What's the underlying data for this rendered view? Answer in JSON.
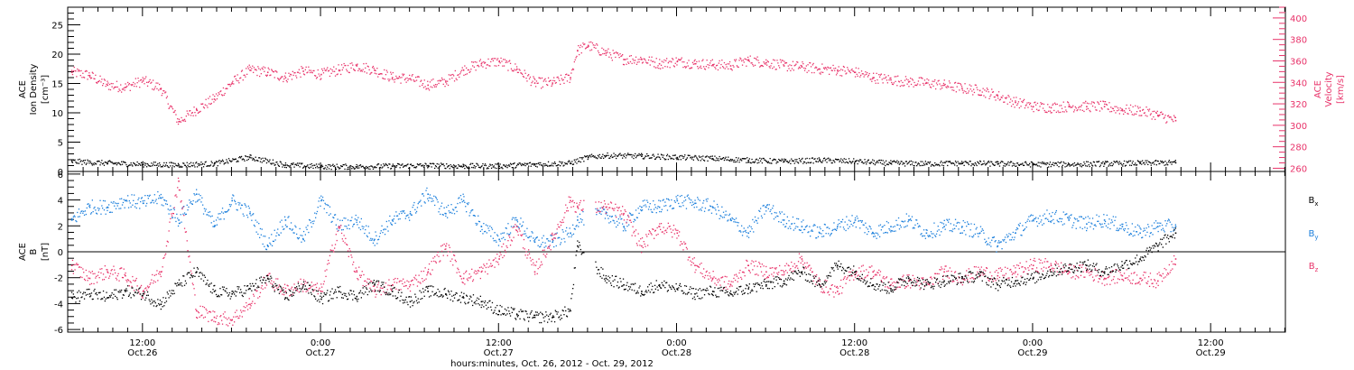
{
  "colors": {
    "density": "#000000",
    "velocity": "#e8336a",
    "bx": "#000000",
    "by": "#1b7fdc",
    "bz": "#e8336a"
  },
  "x_axis": {
    "title": "hours:minutes, Oct. 26, 2012 - Oct. 29, 2012",
    "ticks": [
      {
        "t": 0.5,
        "time": "12:00",
        "date": "Oct.26"
      },
      {
        "t": 1.0,
        "time": "0:00",
        "date": "Oct.27"
      },
      {
        "t": 1.5,
        "time": "12:00",
        "date": "Oct.27"
      },
      {
        "t": 2.0,
        "time": "0:00",
        "date": "Oct.28"
      },
      {
        "t": 2.5,
        "time": "12:00",
        "date": "Oct.28"
      },
      {
        "t": 3.0,
        "time": "0:00",
        "date": "Oct.29"
      },
      {
        "t": 3.5,
        "time": "12:00",
        "date": "Oct.29"
      }
    ]
  },
  "panel1": {
    "left_label": [
      "ACE",
      "Ion Density",
      "[cm⁻³]"
    ],
    "right_label": [
      "ACE",
      "Velocity",
      "[km/s]"
    ],
    "left_ticks": [
      "0",
      "5",
      "10",
      "15",
      "20",
      "25"
    ],
    "right_ticks": [
      "260",
      "280",
      "300",
      "320",
      "340",
      "360",
      "380",
      "400"
    ]
  },
  "panel2": {
    "left_label": [
      "ACE",
      "B",
      "[nT]"
    ],
    "left_ticks": [
      "-6",
      "-4",
      "-2",
      "0",
      "2",
      "4",
      "6"
    ],
    "legend": [
      "Bx",
      "By",
      "Bz"
    ]
  },
  "chart_data": [
    {
      "type": "scatter",
      "title": "",
      "xlabel": "hours:minutes, Oct. 26, 2012 - Oct. 29, 2012",
      "x_units": "days since Oct. 26, 2012 00:00",
      "xlim": [
        0.29,
        3.71
      ],
      "y_left": {
        "label": "ACE Ion Density [cm^-3]",
        "ylim": [
          0,
          28
        ]
      },
      "y_right": {
        "label": "ACE Velocity [km/s]",
        "ylim": [
          257,
          410
        ]
      },
      "series": [
        {
          "name": "Ion Density",
          "axis": "left",
          "color": "#000000",
          "x": [
            0.3,
            0.4,
            0.5,
            0.6,
            0.7,
            0.8,
            0.9,
            1.0,
            1.1,
            1.2,
            1.3,
            1.4,
            1.5,
            1.6,
            1.7,
            1.75,
            1.8,
            1.9,
            2.0,
            2.1,
            2.2,
            2.3,
            2.4,
            2.5,
            2.6,
            2.7,
            2.8,
            2.9,
            3.0,
            3.1,
            3.2,
            3.3,
            3.4
          ],
          "y": [
            1.8,
            1.5,
            1.3,
            1.2,
            1.4,
            2.5,
            1.2,
            0.9,
            0.9,
            1.0,
            1.1,
            1.0,
            1.0,
            1.3,
            1.5,
            2.5,
            2.8,
            2.7,
            2.5,
            2.3,
            2.0,
            1.8,
            2.0,
            1.8,
            1.5,
            1.4,
            1.5,
            1.4,
            1.3,
            1.3,
            1.4,
            1.5,
            1.6
          ]
        },
        {
          "name": "Velocity",
          "axis": "right",
          "color": "#e8336a",
          "x": [
            0.3,
            0.35,
            0.4,
            0.45,
            0.5,
            0.55,
            0.6,
            0.65,
            0.7,
            0.75,
            0.8,
            0.85,
            0.9,
            0.95,
            1.0,
            1.05,
            1.1,
            1.15,
            1.2,
            1.25,
            1.3,
            1.35,
            1.4,
            1.45,
            1.5,
            1.55,
            1.6,
            1.65,
            1.7,
            1.72,
            1.75,
            1.8,
            1.85,
            1.9,
            1.95,
            2.0,
            2.05,
            2.1,
            2.15,
            2.2,
            2.25,
            2.3,
            2.35,
            2.4,
            2.45,
            2.5,
            2.55,
            2.6,
            2.65,
            2.7,
            2.75,
            2.8,
            2.85,
            2.9,
            2.95,
            3.0,
            3.05,
            3.1,
            3.15,
            3.2,
            3.25,
            3.3,
            3.35,
            3.4
          ],
          "y": [
            350,
            347,
            338,
            336,
            342,
            335,
            304,
            315,
            325,
            340,
            352,
            350,
            345,
            351,
            348,
            352,
            356,
            352,
            345,
            344,
            338,
            341,
            352,
            358,
            360,
            353,
            340,
            340,
            345,
            370,
            375,
            368,
            362,
            362,
            358,
            360,
            358,
            357,
            356,
            361,
            359,
            356,
            355,
            353,
            352,
            350,
            345,
            343,
            341,
            340,
            338,
            335,
            333,
            328,
            322,
            318,
            317,
            318,
            318,
            318,
            315,
            314,
            310,
            305
          ]
        }
      ]
    },
    {
      "type": "scatter",
      "title": "",
      "xlabel": "hours:minutes, Oct. 26, 2012 - Oct. 29, 2012",
      "x_units": "days since Oct. 26, 2012 00:00",
      "xlim": [
        0.29,
        3.71
      ],
      "ylabel": "ACE B [nT]",
      "ylim": [
        -6.2,
        6.2
      ],
      "legend": {
        "entries": [
          "Bx",
          "By",
          "Bz"
        ],
        "placement": "right"
      },
      "series": [
        {
          "name": "Bx",
          "color": "#000000",
          "x": [
            0.3,
            0.35,
            0.4,
            0.45,
            0.5,
            0.55,
            0.6,
            0.65,
            0.7,
            0.75,
            0.8,
            0.85,
            0.9,
            0.95,
            1.0,
            1.05,
            1.1,
            1.15,
            1.2,
            1.25,
            1.3,
            1.35,
            1.4,
            1.45,
            1.5,
            1.55,
            1.6,
            1.65,
            1.7,
            1.72,
            1.8,
            1.85,
            1.9,
            1.95,
            2.0,
            2.05,
            2.1,
            2.15,
            2.2,
            2.25,
            2.3,
            2.35,
            2.4,
            2.45,
            2.5,
            2.55,
            2.6,
            2.65,
            2.7,
            2.75,
            2.8,
            2.85,
            2.9,
            2.95,
            3.0,
            3.05,
            3.1,
            3.15,
            3.2,
            3.25,
            3.3,
            3.35,
            3.4
          ],
          "y": [
            -3.5,
            -3.2,
            -3.5,
            -3.0,
            -3.2,
            -4.0,
            -2.5,
            -1.5,
            -3.0,
            -3.2,
            -2.8,
            -2.0,
            -3.5,
            -2.5,
            -3.6,
            -3.0,
            -3.4,
            -2.5,
            -3.0,
            -3.8,
            -3.0,
            -3.2,
            -3.5,
            -3.8,
            -4.5,
            -4.8,
            -5.0,
            -5.0,
            -4.5,
            0.5,
            -2.0,
            -2.5,
            -3.0,
            -2.5,
            -2.8,
            -3.2,
            -3.0,
            -3.2,
            -2.8,
            -2.5,
            -2.2,
            -1.5,
            -2.5,
            -1.0,
            -1.5,
            -2.5,
            -2.8,
            -2.0,
            -2.5,
            -2.2,
            -2.0,
            -1.8,
            -2.5,
            -2.2,
            -2.0,
            -1.5,
            -1.2,
            -1.0,
            -1.5,
            -1.0,
            -0.5,
            0.5,
            1.5
          ]
        },
        {
          "name": "By",
          "color": "#1b7fdc",
          "x": [
            0.3,
            0.35,
            0.4,
            0.45,
            0.5,
            0.55,
            0.6,
            0.65,
            0.7,
            0.75,
            0.8,
            0.85,
            0.9,
            0.95,
            1.0,
            1.05,
            1.1,
            1.15,
            1.2,
            1.25,
            1.3,
            1.35,
            1.4,
            1.45,
            1.5,
            1.55,
            1.6,
            1.65,
            1.7,
            1.72,
            1.8,
            1.85,
            1.9,
            1.95,
            2.0,
            2.05,
            2.1,
            2.15,
            2.2,
            2.25,
            2.3,
            2.35,
            2.4,
            2.45,
            2.5,
            2.55,
            2.6,
            2.65,
            2.7,
            2.75,
            2.8,
            2.85,
            2.9,
            2.95,
            3.0,
            3.05,
            3.1,
            3.15,
            3.2,
            3.25,
            3.3,
            3.35,
            3.4
          ],
          "y": [
            2.5,
            3.5,
            3.5,
            4.0,
            3.8,
            4.2,
            2.5,
            4.5,
            2.0,
            4.0,
            3.0,
            0.5,
            2.5,
            1.0,
            4.0,
            2.0,
            2.5,
            1.0,
            2.5,
            3.0,
            4.5,
            3.0,
            4.0,
            2.0,
            1.0,
            2.5,
            0.8,
            0.8,
            1.5,
            2.5,
            3.0,
            2.0,
            3.5,
            3.5,
            4.0,
            3.8,
            3.5,
            2.5,
            1.5,
            3.5,
            2.5,
            2.0,
            1.5,
            2.0,
            2.5,
            1.5,
            2.0,
            2.5,
            1.5,
            2.0,
            2.0,
            1.5,
            0.5,
            1.5,
            2.5,
            2.8,
            2.5,
            2.2,
            2.5,
            2.0,
            1.5,
            2.0,
            2.0
          ]
        },
        {
          "name": "Bz",
          "color": "#e8336a",
          "x": [
            0.3,
            0.35,
            0.4,
            0.45,
            0.5,
            0.55,
            0.6,
            0.65,
            0.7,
            0.75,
            0.8,
            0.85,
            0.9,
            0.95,
            1.0,
            1.05,
            1.1,
            1.15,
            1.2,
            1.25,
            1.3,
            1.35,
            1.4,
            1.45,
            1.5,
            1.55,
            1.6,
            1.65,
            1.7,
            1.72,
            1.8,
            1.85,
            1.9,
            1.95,
            2.0,
            2.05,
            2.1,
            2.15,
            2.2,
            2.25,
            2.3,
            2.35,
            2.4,
            2.45,
            2.5,
            2.55,
            2.6,
            2.65,
            2.7,
            2.75,
            2.8,
            2.85,
            2.9,
            2.95,
            3.0,
            3.05,
            3.1,
            3.15,
            3.2,
            3.25,
            3.3,
            3.35,
            3.4
          ],
          "y": [
            -1.0,
            -2.0,
            -1.5,
            -1.8,
            -3.0,
            -1.5,
            5.5,
            -4.5,
            -5.0,
            -5.2,
            -4.0,
            -2.0,
            -3.0,
            -2.5,
            -3.0,
            2.0,
            -1.5,
            -3.0,
            -2.5,
            -2.5,
            -1.5,
            0.5,
            -2.0,
            -1.5,
            -0.5,
            2.0,
            -1.5,
            1.0,
            4.0,
            3.5,
            3.5,
            3.0,
            0.5,
            2.0,
            1.5,
            -1.0,
            -2.0,
            -2.5,
            -1.0,
            -1.5,
            -1.5,
            -0.5,
            -2.5,
            -3.0,
            -1.5,
            -1.5,
            -2.5,
            -2.2,
            -2.5,
            -1.5,
            -2.0,
            -1.5,
            -1.8,
            -1.5,
            -1.0,
            -1.0,
            -1.5,
            -1.5,
            -2.0,
            -1.8,
            -2.0,
            -2.2,
            -0.5
          ]
        }
      ]
    }
  ]
}
